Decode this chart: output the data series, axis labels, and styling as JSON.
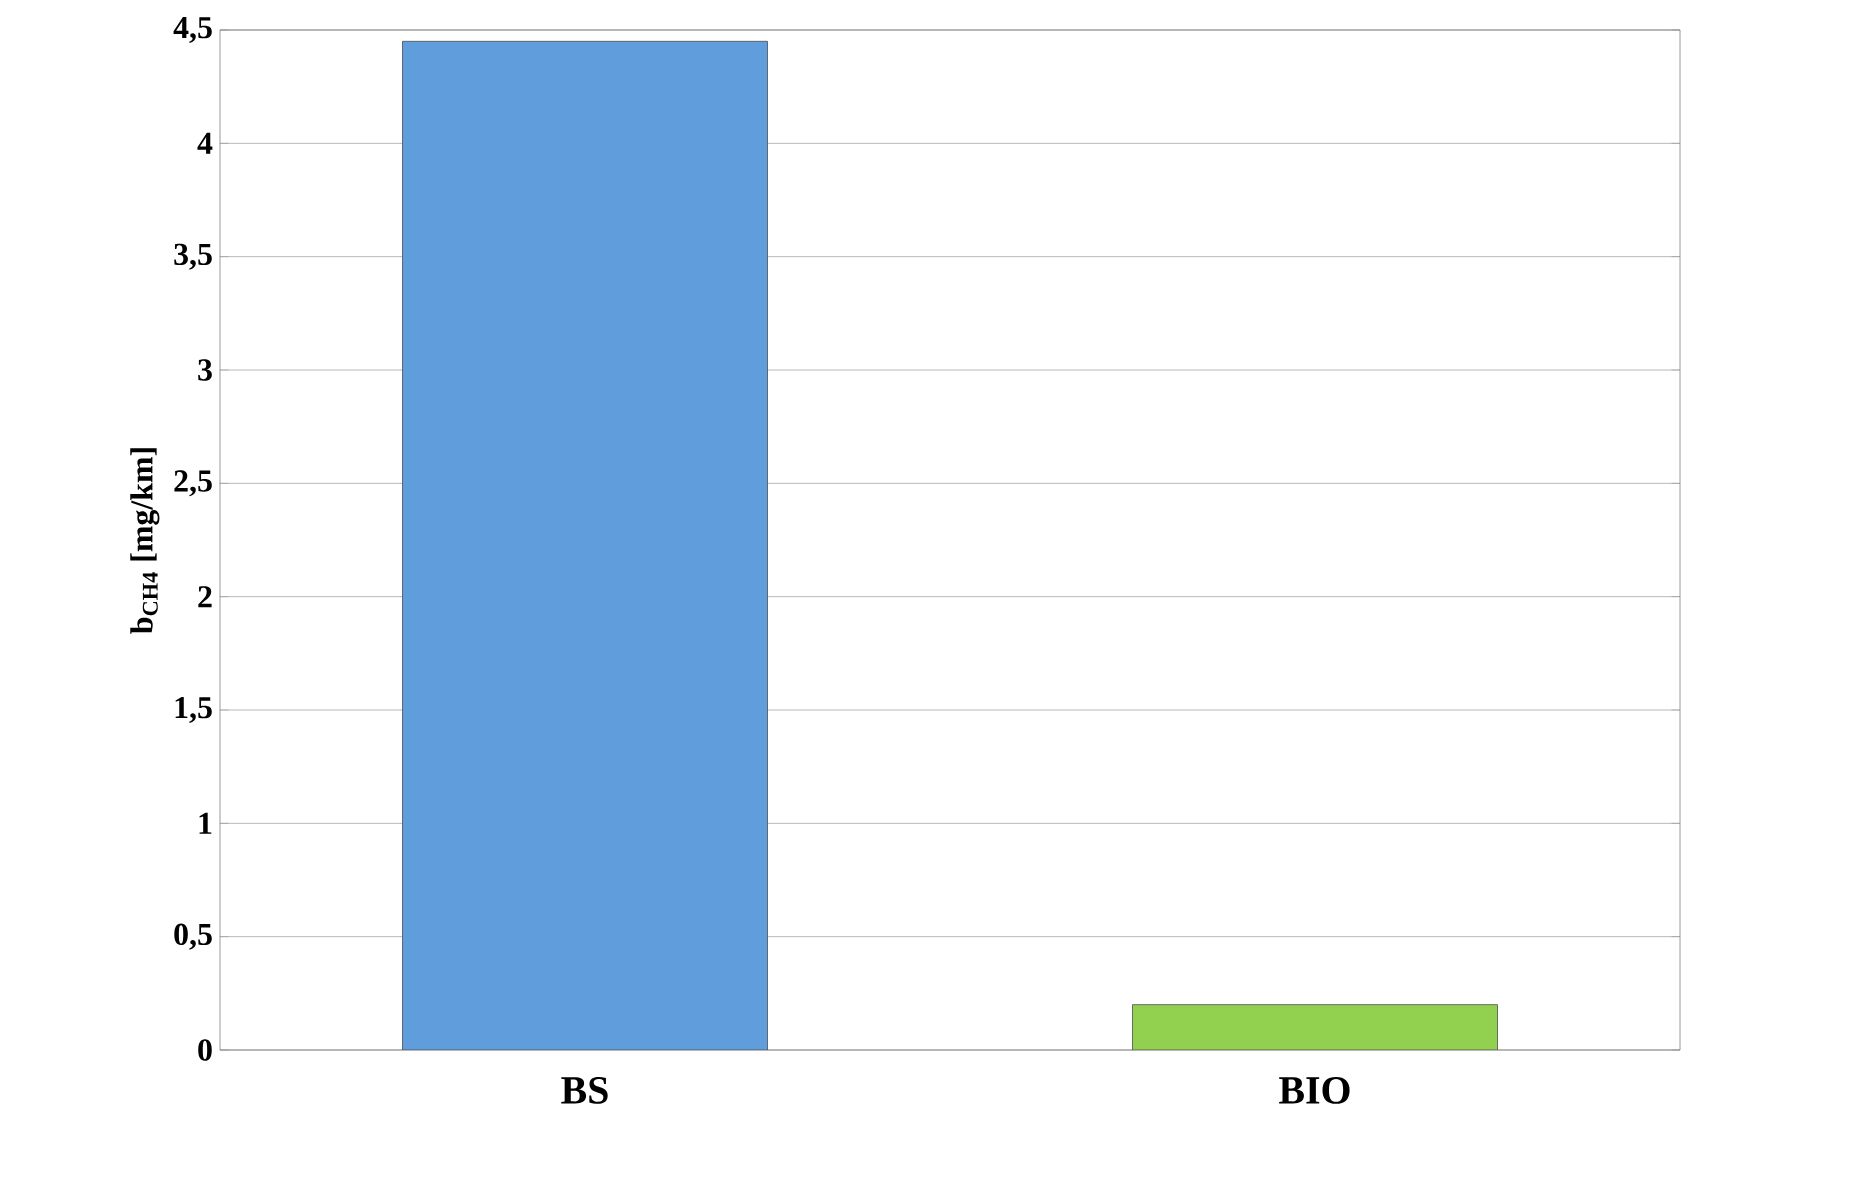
{
  "chart_data": {
    "type": "bar",
    "ylabel": "b$_{CH4}$ [mg/km]",
    "categories": [
      "BS",
      "BIO"
    ],
    "values": [
      4.45,
      0.2
    ],
    "colors": [
      "#5f9ddc",
      "#92d050"
    ],
    "ylim": [
      0,
      4.5
    ],
    "yticks": [
      0,
      {
        "value": 0.5,
        "label": "0,5"
      },
      1,
      {
        "value": 1.5,
        "label": "1,5"
      },
      2,
      {
        "value": 2.5,
        "label": "2,5"
      },
      3,
      {
        "value": 3.5,
        "label": "3,5"
      },
      4,
      {
        "value": 4.5,
        "label": "4,5"
      }
    ],
    "grid": "y"
  }
}
